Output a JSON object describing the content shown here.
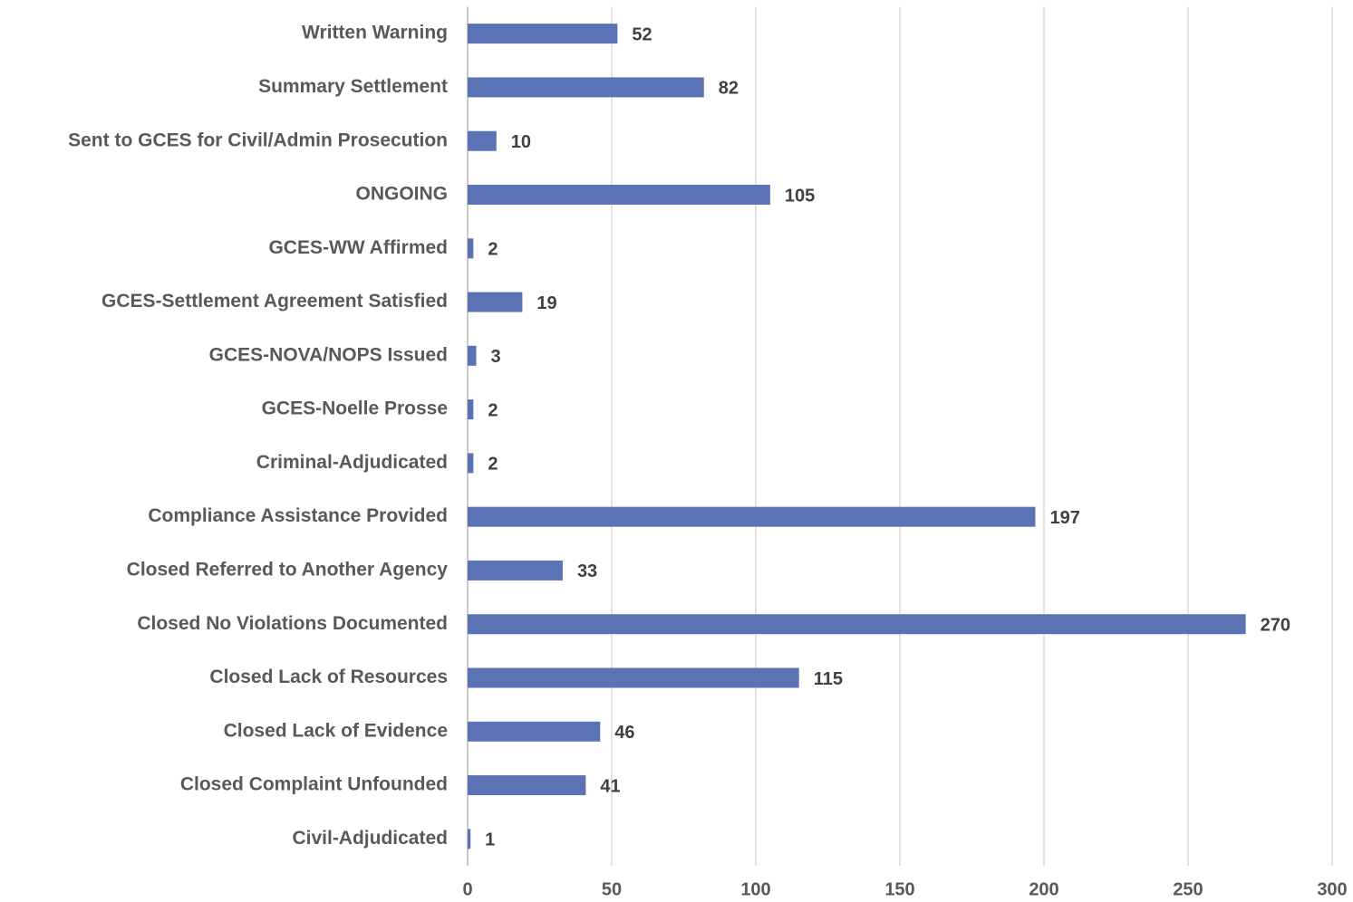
{
  "chart_data": {
    "type": "bar",
    "orientation": "horizontal",
    "categories": [
      "Written Warning",
      "Summary Settlement",
      "Sent to GCES for Civil/Admin Prosecution",
      "ONGOING",
      "GCES-WW Affirmed",
      "GCES-Settlement Agreement Satisfied",
      "GCES-NOVA/NOPS Issued",
      "GCES-Noelle Prosse",
      "Criminal-Adjudicated",
      "Compliance Assistance Provided",
      "Closed Referred to Another Agency",
      "Closed No Violations Documented",
      "Closed Lack of Resources",
      "Closed Lack of Evidence",
      "Closed Complaint Unfounded",
      "Civil-Adjudicated"
    ],
    "values": [
      52,
      82,
      10,
      105,
      2,
      19,
      3,
      2,
      2,
      197,
      33,
      270,
      115,
      46,
      41,
      1
    ],
    "color": "#5b73b5",
    "xlim": [
      0,
      300
    ],
    "xticks": [
      0,
      50,
      100,
      150,
      200,
      250,
      300
    ],
    "grid": true
  }
}
